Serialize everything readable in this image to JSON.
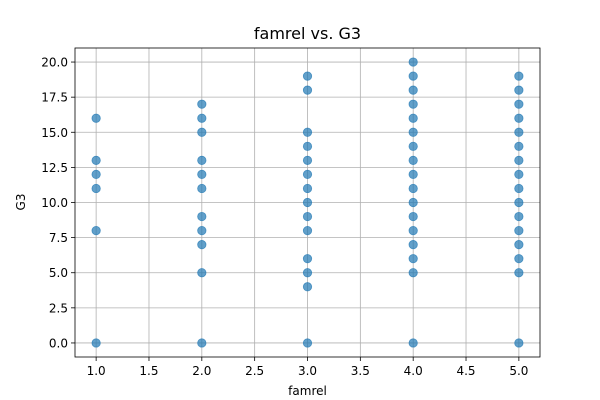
{
  "chart_data": {
    "type": "scatter",
    "title": "famrel vs. G3",
    "xlabel": "famrel",
    "ylabel": "G3",
    "xlim": [
      0.8,
      5.2
    ],
    "ylim": [
      -1.0,
      21.0
    ],
    "x_ticks": [
      1.0,
      1.5,
      2.0,
      2.5,
      3.0,
      3.5,
      4.0,
      4.5,
      5.0
    ],
    "x_tick_labels": [
      "1.0",
      "1.5",
      "2.0",
      "2.5",
      "3.0",
      "3.5",
      "4.0",
      "4.5",
      "5.0"
    ],
    "y_ticks": [
      0.0,
      2.5,
      5.0,
      7.5,
      10.0,
      12.5,
      15.0,
      17.5,
      20.0
    ],
    "y_tick_labels": [
      "0.0",
      "2.5",
      "5.0",
      "7.5",
      "10.0",
      "12.5",
      "15.0",
      "17.5",
      "20.0"
    ],
    "grid": true,
    "marker_color": "#1f77b4",
    "marker_alpha": 0.7,
    "points": [
      {
        "x": 1,
        "y": 0
      },
      {
        "x": 1,
        "y": 8
      },
      {
        "x": 1,
        "y": 11
      },
      {
        "x": 1,
        "y": 12
      },
      {
        "x": 1,
        "y": 13
      },
      {
        "x": 1,
        "y": 16
      },
      {
        "x": 2,
        "y": 0
      },
      {
        "x": 2,
        "y": 5
      },
      {
        "x": 2,
        "y": 7
      },
      {
        "x": 2,
        "y": 8
      },
      {
        "x": 2,
        "y": 9
      },
      {
        "x": 2,
        "y": 11
      },
      {
        "x": 2,
        "y": 12
      },
      {
        "x": 2,
        "y": 13
      },
      {
        "x": 2,
        "y": 15
      },
      {
        "x": 2,
        "y": 16
      },
      {
        "x": 2,
        "y": 17
      },
      {
        "x": 3,
        "y": 0
      },
      {
        "x": 3,
        "y": 4
      },
      {
        "x": 3,
        "y": 5
      },
      {
        "x": 3,
        "y": 6
      },
      {
        "x": 3,
        "y": 8
      },
      {
        "x": 3,
        "y": 9
      },
      {
        "x": 3,
        "y": 10
      },
      {
        "x": 3,
        "y": 11
      },
      {
        "x": 3,
        "y": 12
      },
      {
        "x": 3,
        "y": 13
      },
      {
        "x": 3,
        "y": 14
      },
      {
        "x": 3,
        "y": 15
      },
      {
        "x": 3,
        "y": 18
      },
      {
        "x": 3,
        "y": 19
      },
      {
        "x": 4,
        "y": 0
      },
      {
        "x": 4,
        "y": 5
      },
      {
        "x": 4,
        "y": 6
      },
      {
        "x": 4,
        "y": 7
      },
      {
        "x": 4,
        "y": 8
      },
      {
        "x": 4,
        "y": 9
      },
      {
        "x": 4,
        "y": 10
      },
      {
        "x": 4,
        "y": 11
      },
      {
        "x": 4,
        "y": 12
      },
      {
        "x": 4,
        "y": 13
      },
      {
        "x": 4,
        "y": 14
      },
      {
        "x": 4,
        "y": 15
      },
      {
        "x": 4,
        "y": 16
      },
      {
        "x": 4,
        "y": 17
      },
      {
        "x": 4,
        "y": 18
      },
      {
        "x": 4,
        "y": 19
      },
      {
        "x": 4,
        "y": 20
      },
      {
        "x": 5,
        "y": 0
      },
      {
        "x": 5,
        "y": 5
      },
      {
        "x": 5,
        "y": 6
      },
      {
        "x": 5,
        "y": 7
      },
      {
        "x": 5,
        "y": 8
      },
      {
        "x": 5,
        "y": 9
      },
      {
        "x": 5,
        "y": 10
      },
      {
        "x": 5,
        "y": 11
      },
      {
        "x": 5,
        "y": 12
      },
      {
        "x": 5,
        "y": 13
      },
      {
        "x": 5,
        "y": 14
      },
      {
        "x": 5,
        "y": 15
      },
      {
        "x": 5,
        "y": 16
      },
      {
        "x": 5,
        "y": 17
      },
      {
        "x": 5,
        "y": 18
      },
      {
        "x": 5,
        "y": 19
      }
    ]
  }
}
